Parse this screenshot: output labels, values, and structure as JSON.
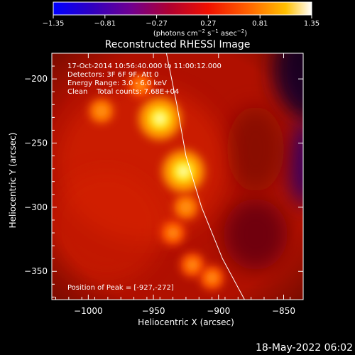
{
  "chart_data": {
    "type": "heatmap",
    "title": "Reconstructed RHESSI Image",
    "xlabel": "Heliocentric X (arcsec)",
    "ylabel": "Heliocentric Y (arcsec)",
    "xlim": [
      -1028,
      -835
    ],
    "ylim": [
      -372,
      -180
    ],
    "x_ticks": [
      -1000,
      -950,
      -900,
      -850
    ],
    "y_ticks": [
      -200,
      -250,
      -300,
      -350
    ],
    "x_tick_labels": [
      "−1000",
      "−950",
      "−900",
      "−850"
    ],
    "y_tick_labels": [
      "−200",
      "−250",
      "−300",
      "−350"
    ],
    "colorbar": {
      "range": [
        -1.35,
        1.35
      ],
      "ticks": [
        -1.35,
        -0.81,
        -0.27,
        0.27,
        0.81,
        1.35
      ],
      "tick_labels": [
        "−1.35",
        "−0.81",
        "−0.27",
        "0.27",
        "0.81",
        "1.35"
      ],
      "label_prefix": "(photons cm",
      "label_exp1": "−2",
      "label_mid": " s",
      "label_exp2": "−1",
      "label_mid2": " asec",
      "label_exp3": "−2",
      "label_suffix": ")"
    },
    "annotations": {
      "time_range": "17-Oct-2014 10:56:40.000 to 11:00:12.000",
      "detectors": "Detectors: 3F 6F 9F, Att 0",
      "energy": "Energy Range: 3.0 - 6.0 keV",
      "method": "Clean    Total counts: 7.68E+04",
      "peak": "Position of Peak = [-927,-272]"
    },
    "sources": [
      {
        "x": -945,
        "y": -231,
        "value": 1.35
      },
      {
        "x": -927,
        "y": -272,
        "value": 1.35
      },
      {
        "x": -990,
        "y": -225,
        "value": 0.6
      },
      {
        "x": -960,
        "y": -205,
        "value": 0.5
      },
      {
        "x": -925,
        "y": -300,
        "value": 0.6
      },
      {
        "x": -935,
        "y": -320,
        "value": 0.5
      },
      {
        "x": -920,
        "y": -345,
        "value": 0.5
      },
      {
        "x": -905,
        "y": -355,
        "value": 0.45
      }
    ],
    "limb_curve": [
      {
        "x": -940,
        "y": -180
      },
      {
        "x": -932,
        "y": -220
      },
      {
        "x": -925,
        "y": -260
      },
      {
        "x": -913,
        "y": -300
      },
      {
        "x": -897,
        "y": -340
      },
      {
        "x": -880,
        "y": -372
      }
    ],
    "colors": {
      "background": "#000000",
      "limb": "#ffffff",
      "peak": "#ffffb0",
      "colormap": [
        "#0000ff",
        "#5000a0",
        "#7a007a",
        "#c00000",
        "#ff3000",
        "#ff9000",
        "#ffe000",
        "#ffffff"
      ]
    }
  },
  "footer": {
    "timestamp": "18-May-2022 06:02"
  }
}
